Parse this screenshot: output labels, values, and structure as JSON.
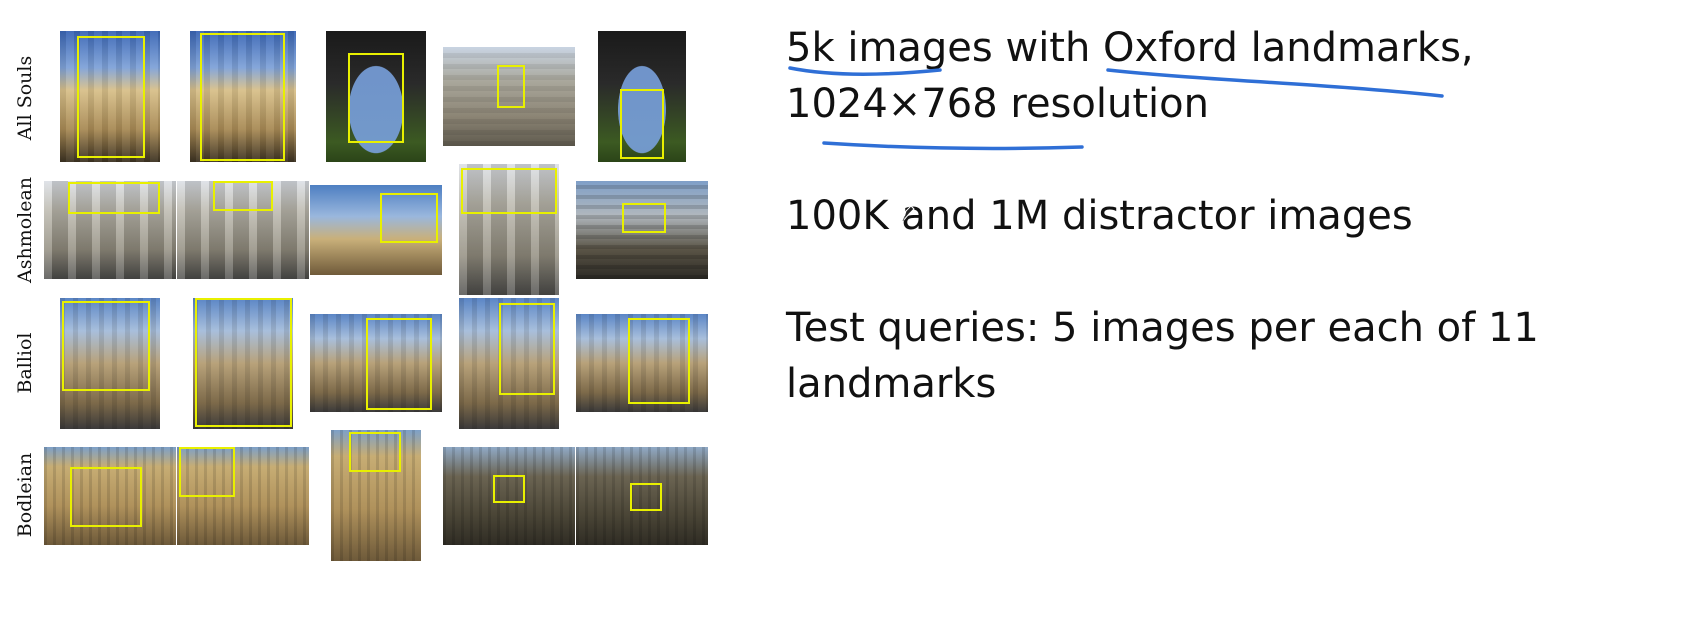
{
  "grid": {
    "row_labels": [
      "All Souls",
      "Ashmolean",
      "Balliol",
      "Bodleian"
    ]
  },
  "text": {
    "line1_a": "5k images with Oxford landmarks,",
    "line1_b": "1024×768 resolution",
    "line2": "100K and 1M distractor images",
    "line3_a": "Test queries: 5 images per each of 11",
    "line3_b": "landmarks"
  },
  "colors": {
    "bbox": "#e8f000",
    "underline": "#2f6fd6"
  },
  "icons": [
    "pen-cursor-icon"
  ]
}
